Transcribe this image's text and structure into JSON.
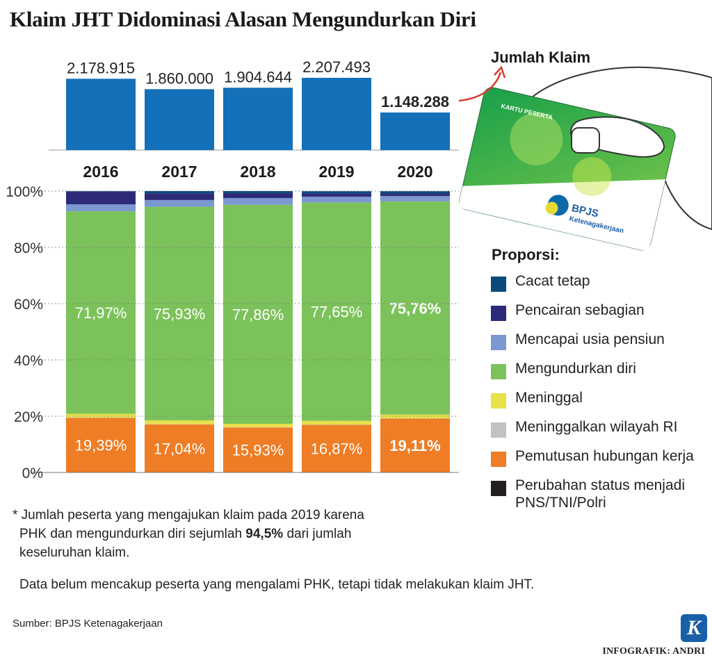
{
  "title": "Klaim JHT Didominasi Alasan Mengundurkan Diri",
  "chart_data": [
    {
      "type": "bar",
      "title": "Jumlah Klaim",
      "categories": [
        "2016",
        "2017",
        "2018",
        "2019",
        "2020"
      ],
      "values": [
        2178915,
        1860000,
        1904644,
        2207493,
        1148288
      ],
      "value_labels": [
        "2.178.915",
        "1.860.000",
        "1.904.644",
        "2.207.493",
        "1.148.288"
      ],
      "highlight": "2020",
      "color": "#1470b8"
    },
    {
      "type": "bar",
      "stacked": true,
      "percent": true,
      "categories": [
        "2016",
        "2017",
        "2018",
        "2019",
        "2020"
      ],
      "ylim": [
        0,
        100
      ],
      "yticks": [
        "0%",
        "20%",
        "40%",
        "60%",
        "80%",
        "100%"
      ],
      "grid": true,
      "series": [
        {
          "name": "Perubahan status menjadi PNS/TNI/Polri",
          "color": "#231f20",
          "values": [
            0.05,
            0.05,
            0.05,
            0.05,
            0.05
          ]
        },
        {
          "name": "Pemutusan hubungan kerja",
          "color": "#ee7d25",
          "values": [
            19.39,
            17.04,
            15.93,
            16.87,
            19.11
          ],
          "labels": [
            "19,39%",
            "17,04%",
            "15,93%",
            "16,87%",
            "19,11%"
          ]
        },
        {
          "name": "Meninggalkan wilayah RI",
          "color": "#c2c2c2",
          "values": [
            0.1,
            0.1,
            0.1,
            0.1,
            0.1
          ]
        },
        {
          "name": "Meninggal",
          "color": "#e8e14a",
          "values": [
            1.3,
            1.3,
            1.2,
            1.3,
            1.3
          ]
        },
        {
          "name": "Mengundurkan diri",
          "color": "#7cc25a",
          "values": [
            71.97,
            75.93,
            77.86,
            77.65,
            75.76
          ],
          "labels": [
            "71,97%",
            "75,93%",
            "77,86%",
            "77,65%",
            "75,76%"
          ]
        },
        {
          "name": "Mencapai usia pensiun",
          "color": "#7b98d0",
          "values": [
            2.5,
            2.4,
            2.4,
            2.0,
            1.9
          ]
        },
        {
          "name": "Pencairan sebagian",
          "color": "#2e2a7a",
          "values": [
            4.5,
            2.4,
            1.7,
            1.2,
            0.9
          ]
        },
        {
          "name": "Cacat tetap",
          "color": "#0a4a7a",
          "values": [
            0.19,
            0.78,
            0.76,
            0.78,
            0.83
          ]
        }
      ],
      "highlight": "2020"
    }
  ],
  "legend": {
    "title": "Proporsi:",
    "items": [
      {
        "label": "Cacat tetap",
        "color": "#0a4a7a"
      },
      {
        "label": "Pencairan sebagian",
        "color": "#2e2a7a"
      },
      {
        "label": "Mencapai usia pensiun",
        "color": "#7b98d0"
      },
      {
        "label": "Mengundurkan diri",
        "color": "#7cc25a"
      },
      {
        "label": "Meninggal",
        "color": "#e8e14a"
      },
      {
        "label": "Meninggalkan wilayah RI",
        "color": "#c2c2c2"
      },
      {
        "label": "Pemutusan hubungan kerja",
        "color": "#ee7d25"
      },
      {
        "label": "Perubahan status menjadi PNS/TNI/Polri",
        "color": "#231f20"
      }
    ]
  },
  "card": {
    "label": "KARTU PESERTA",
    "brand": "BPJS",
    "brand_sub": "Ketenagakerjaan"
  },
  "notes": {
    "note1_a": "* Jumlah peserta yang mengajukan klaim pada 2019 karena",
    "note1_b": "PHK dan mengundurkan diri sejumlah ",
    "note1_bold": "94,5%",
    "note1_c": " dari jumlah",
    "note1_d": "keseluruhan klaim.",
    "note2": "Data belum mencakup peserta yang mengalami PHK, tetapi tidak melakukan klaim JHT."
  },
  "source": "Sumber: BPJS Ketenagakerjaan",
  "credit": "INFOGRAFIK: ANDRI",
  "logo_letter": "K"
}
